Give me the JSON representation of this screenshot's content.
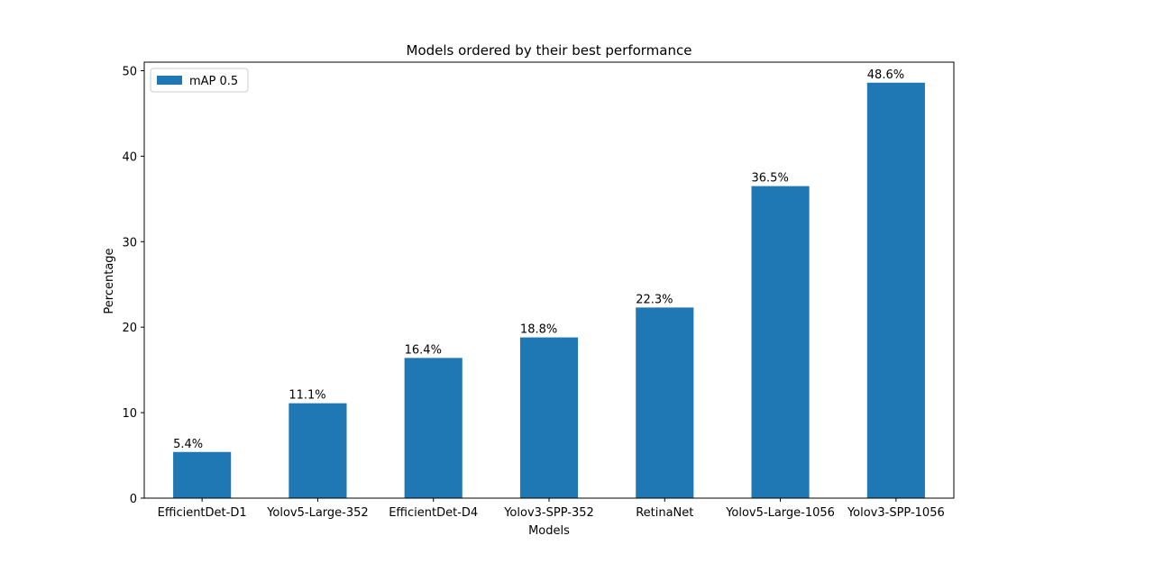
{
  "colors": {
    "bar": "#1f77b4",
    "axis": "#000000",
    "background": "#ffffff"
  },
  "chart_data": {
    "type": "bar",
    "title": "Models ordered by their best performance",
    "xlabel": "Models",
    "ylabel": "Percentage",
    "categories": [
      "EfficientDet-D1",
      "Yolov5-Large-352",
      "EfficientDet-D4",
      "Yolov3-SPP-352",
      "RetinaNet",
      "Yolov5-Large-1056",
      "Yolov3-SPP-1056"
    ],
    "series": [
      {
        "name": "mAP 0.5",
        "values": [
          5.4,
          11.1,
          16.4,
          18.8,
          22.3,
          36.5,
          48.6
        ]
      }
    ],
    "data_labels": [
      "5.4%",
      "11.1%",
      "16.4%",
      "18.8%",
      "22.3%",
      "36.5%",
      "48.6%"
    ],
    "ylim": [
      0,
      51
    ],
    "yticks": [
      0,
      10,
      20,
      30,
      40,
      50
    ],
    "grid": false,
    "legend_position": "top-left"
  }
}
